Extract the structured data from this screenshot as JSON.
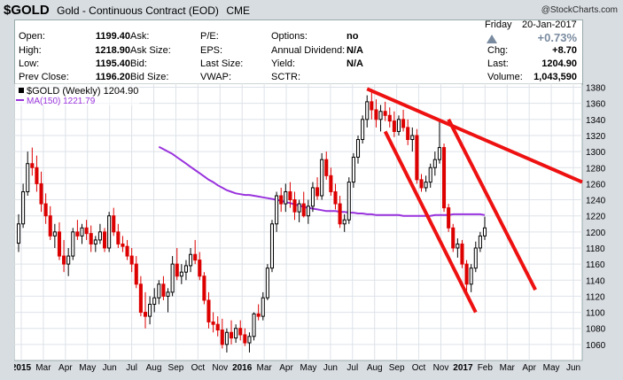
{
  "header": {
    "symbol": "$GOLD",
    "description": "Gold - Continuous Contract (EOD)",
    "exchange": "CME",
    "watermark": "@StockCharts.com"
  },
  "quote": {
    "col1": [
      {
        "label": "Open:",
        "value": "1199.40"
      },
      {
        "label": "High:",
        "value": "1218.90"
      },
      {
        "label": "Low:",
        "value": "1195.40"
      },
      {
        "label": "Prev Close:",
        "value": "1196.20"
      }
    ],
    "col2": [
      {
        "label": "Ask:",
        "value": ""
      },
      {
        "label": "Ask Size:",
        "value": ""
      },
      {
        "label": "Bid:",
        "value": ""
      },
      {
        "label": "Bid Size:",
        "value": ""
      }
    ],
    "col3": [
      {
        "label": "P/E:",
        "value": ""
      },
      {
        "label": "EPS:",
        "value": ""
      },
      {
        "label": "Last Size:",
        "value": ""
      },
      {
        "label": "VWAP:",
        "value": ""
      }
    ],
    "col4": [
      {
        "label": "Options:",
        "value": "no"
      },
      {
        "label": "Annual Dividend:",
        "value": "N/A"
      },
      {
        "label": "Yield:",
        "value": "N/A"
      },
      {
        "label": "SCTR:",
        "value": ""
      }
    ],
    "right": {
      "day": "Friday",
      "date": "20-Jan-2017",
      "change_pct": "+0.73%",
      "chg_label": "Chg:",
      "chg_value": "+8.70",
      "last_label": "Last:",
      "last_value": "1204.90",
      "volume_label": "Volume:",
      "volume_value": "1,043,590"
    },
    "up_color": "#7a8ba0"
  },
  "legend": {
    "price": "$GOLD (Weekly) 1204.90",
    "ma": "MA(150) 1221.79"
  },
  "colors": {
    "up": "#000000",
    "down": "#dd0000",
    "ma": "#9933dd",
    "trend": "#ee1111",
    "grid": "#dde2e8"
  },
  "chart_data": {
    "type": "candlestick",
    "title": "$GOLD (Weekly) 1204.90",
    "ylim": [
      1040,
      1385
    ],
    "y_ticks": [
      1060,
      1080,
      1100,
      1120,
      1140,
      1160,
      1180,
      1200,
      1220,
      1240,
      1260,
      1280,
      1300,
      1320,
      1340,
      1360,
      1380
    ],
    "x_labels": [
      "2015",
      "Mar",
      "Apr",
      "May",
      "Jun",
      "Jul",
      "Aug",
      "Sep",
      "Oct",
      "Nov",
      "2016",
      "Mar",
      "Apr",
      "May",
      "Jun",
      "Jul",
      "Aug",
      "Sep",
      "Oct",
      "Nov",
      "2017",
      "Feb",
      "Mar",
      "Apr",
      "May",
      "Jun"
    ],
    "bold_x_labels": [
      "2015",
      "2016",
      "2017"
    ],
    "ohlc": [
      [
        1186,
        1222,
        1175,
        1210
      ],
      [
        1210,
        1260,
        1205,
        1250
      ],
      [
        1250,
        1300,
        1245,
        1285
      ],
      [
        1285,
        1305,
        1270,
        1280
      ],
      [
        1280,
        1295,
        1250,
        1260
      ],
      [
        1260,
        1275,
        1225,
        1235
      ],
      [
        1235,
        1248,
        1210,
        1220
      ],
      [
        1220,
        1232,
        1190,
        1195
      ],
      [
        1195,
        1210,
        1180,
        1200
      ],
      [
        1200,
        1212,
        1165,
        1170
      ],
      [
        1170,
        1190,
        1150,
        1160
      ],
      [
        1160,
        1180,
        1145,
        1170
      ],
      [
        1170,
        1205,
        1165,
        1200
      ],
      [
        1200,
        1215,
        1190,
        1195
      ],
      [
        1195,
        1210,
        1185,
        1205
      ],
      [
        1205,
        1215,
        1190,
        1198
      ],
      [
        1198,
        1208,
        1175,
        1185
      ],
      [
        1185,
        1195,
        1175,
        1190
      ],
      [
        1190,
        1210,
        1185,
        1200
      ],
      [
        1200,
        1205,
        1175,
        1180
      ],
      [
        1180,
        1225,
        1175,
        1220
      ],
      [
        1220,
        1230,
        1195,
        1200
      ],
      [
        1200,
        1210,
        1180,
        1185
      ],
      [
        1185,
        1195,
        1175,
        1182
      ],
      [
        1182,
        1190,
        1165,
        1170
      ],
      [
        1170,
        1180,
        1150,
        1160
      ],
      [
        1160,
        1170,
        1130,
        1135
      ],
      [
        1135,
        1145,
        1095,
        1100
      ],
      [
        1100,
        1125,
        1080,
        1095
      ],
      [
        1095,
        1120,
        1085,
        1110
      ],
      [
        1110,
        1130,
        1100,
        1118
      ],
      [
        1118,
        1140,
        1110,
        1135
      ],
      [
        1135,
        1145,
        1115,
        1120
      ],
      [
        1120,
        1130,
        1100,
        1125
      ],
      [
        1125,
        1170,
        1120,
        1160
      ],
      [
        1160,
        1180,
        1140,
        1145
      ],
      [
        1145,
        1160,
        1135,
        1150
      ],
      [
        1150,
        1165,
        1140,
        1158
      ],
      [
        1158,
        1180,
        1150,
        1172
      ],
      [
        1172,
        1190,
        1160,
        1165
      ],
      [
        1165,
        1175,
        1140,
        1145
      ],
      [
        1145,
        1150,
        1110,
        1115
      ],
      [
        1115,
        1125,
        1080,
        1088
      ],
      [
        1088,
        1100,
        1075,
        1085
      ],
      [
        1085,
        1095,
        1070,
        1078
      ],
      [
        1078,
        1092,
        1055,
        1060
      ],
      [
        1060,
        1080,
        1050,
        1075
      ],
      [
        1075,
        1090,
        1060,
        1068
      ],
      [
        1068,
        1085,
        1062,
        1080
      ],
      [
        1080,
        1090,
        1065,
        1072
      ],
      [
        1072,
        1080,
        1058,
        1062
      ],
      [
        1062,
        1075,
        1050,
        1070
      ],
      [
        1070,
        1100,
        1065,
        1098
      ],
      [
        1098,
        1110,
        1090,
        1095
      ],
      [
        1095,
        1125,
        1090,
        1118
      ],
      [
        1118,
        1160,
        1115,
        1155
      ],
      [
        1155,
        1215,
        1150,
        1210
      ],
      [
        1210,
        1250,
        1200,
        1245
      ],
      [
        1245,
        1255,
        1225,
        1235
      ],
      [
        1235,
        1260,
        1225,
        1250
      ],
      [
        1250,
        1262,
        1230,
        1240
      ],
      [
        1240,
        1250,
        1215,
        1225
      ],
      [
        1225,
        1240,
        1212,
        1235
      ],
      [
        1235,
        1250,
        1218,
        1220
      ],
      [
        1220,
        1240,
        1210,
        1232
      ],
      [
        1232,
        1262,
        1225,
        1255
      ],
      [
        1255,
        1268,
        1240,
        1245
      ],
      [
        1245,
        1298,
        1240,
        1290
      ],
      [
        1290,
        1300,
        1265,
        1270
      ],
      [
        1270,
        1280,
        1245,
        1250
      ],
      [
        1250,
        1260,
        1228,
        1235
      ],
      [
        1235,
        1245,
        1205,
        1210
      ],
      [
        1210,
        1222,
        1200,
        1215
      ],
      [
        1215,
        1268,
        1210,
        1262
      ],
      [
        1262,
        1298,
        1255,
        1293
      ],
      [
        1293,
        1320,
        1285,
        1315
      ],
      [
        1315,
        1345,
        1310,
        1340
      ],
      [
        1340,
        1370,
        1330,
        1362
      ],
      [
        1362,
        1378,
        1340,
        1352
      ],
      [
        1352,
        1365,
        1330,
        1340
      ],
      [
        1340,
        1358,
        1325,
        1350
      ],
      [
        1350,
        1362,
        1338,
        1345
      ],
      [
        1345,
        1355,
        1330,
        1338
      ],
      [
        1338,
        1350,
        1318,
        1325
      ],
      [
        1325,
        1345,
        1320,
        1340
      ],
      [
        1340,
        1352,
        1325,
        1330
      ],
      [
        1330,
        1340,
        1308,
        1315
      ],
      [
        1315,
        1330,
        1300,
        1320
      ],
      [
        1320,
        1328,
        1260,
        1265
      ],
      [
        1265,
        1272,
        1250,
        1255
      ],
      [
        1255,
        1270,
        1250,
        1262
      ],
      [
        1262,
        1285,
        1255,
        1280
      ],
      [
        1280,
        1300,
        1270,
        1290
      ],
      [
        1290,
        1338,
        1285,
        1305
      ],
      [
        1305,
        1310,
        1225,
        1230
      ],
      [
        1230,
        1235,
        1200,
        1205
      ],
      [
        1205,
        1210,
        1175,
        1180
      ],
      [
        1180,
        1192,
        1168,
        1185
      ],
      [
        1185,
        1190,
        1155,
        1160
      ],
      [
        1160,
        1165,
        1125,
        1135
      ],
      [
        1135,
        1160,
        1125,
        1155
      ],
      [
        1155,
        1188,
        1150,
        1180
      ],
      [
        1180,
        1200,
        1175,
        1195
      ],
      [
        1195,
        1219,
        1190,
        1205
      ]
    ],
    "ma_150": [
      1306,
      1303,
      1300,
      1297,
      1293,
      1289,
      1285,
      1281,
      1277,
      1273,
      1269,
      1265,
      1262,
      1258,
      1255,
      1252,
      1250,
      1248,
      1247,
      1246,
      1246,
      1245,
      1244,
      1243,
      1242,
      1241,
      1240,
      1239,
      1237,
      1236,
      1234,
      1233,
      1231,
      1230,
      1229,
      1228,
      1227,
      1226,
      1226,
      1226,
      1225,
      1225,
      1224,
      1224,
      1223,
      1223,
      1222,
      1222,
      1221,
      1221,
      1221,
      1221,
      1221,
      1221,
      1220,
      1220,
      1220,
      1220,
      1220,
      1220,
      1220,
      1221,
      1221,
      1221,
      1221,
      1222,
      1222,
      1222,
      1222,
      1222,
      1222,
      1222,
      1221
    ],
    "trend_lines": [
      {
        "name": "upper",
        "from": [
          1378,
          "Jul 2016"
        ],
        "to": [
          1262,
          "Jun 2017"
        ]
      },
      {
        "name": "channel-top",
        "from": [
          1340,
          "Nov 2016"
        ],
        "to": [
          1128,
          "Apr 2017"
        ]
      },
      {
        "name": "channel-bottom",
        "from": [
          1325,
          "Aug 2016"
        ],
        "to": [
          1100,
          "Jan 2017"
        ]
      }
    ]
  }
}
